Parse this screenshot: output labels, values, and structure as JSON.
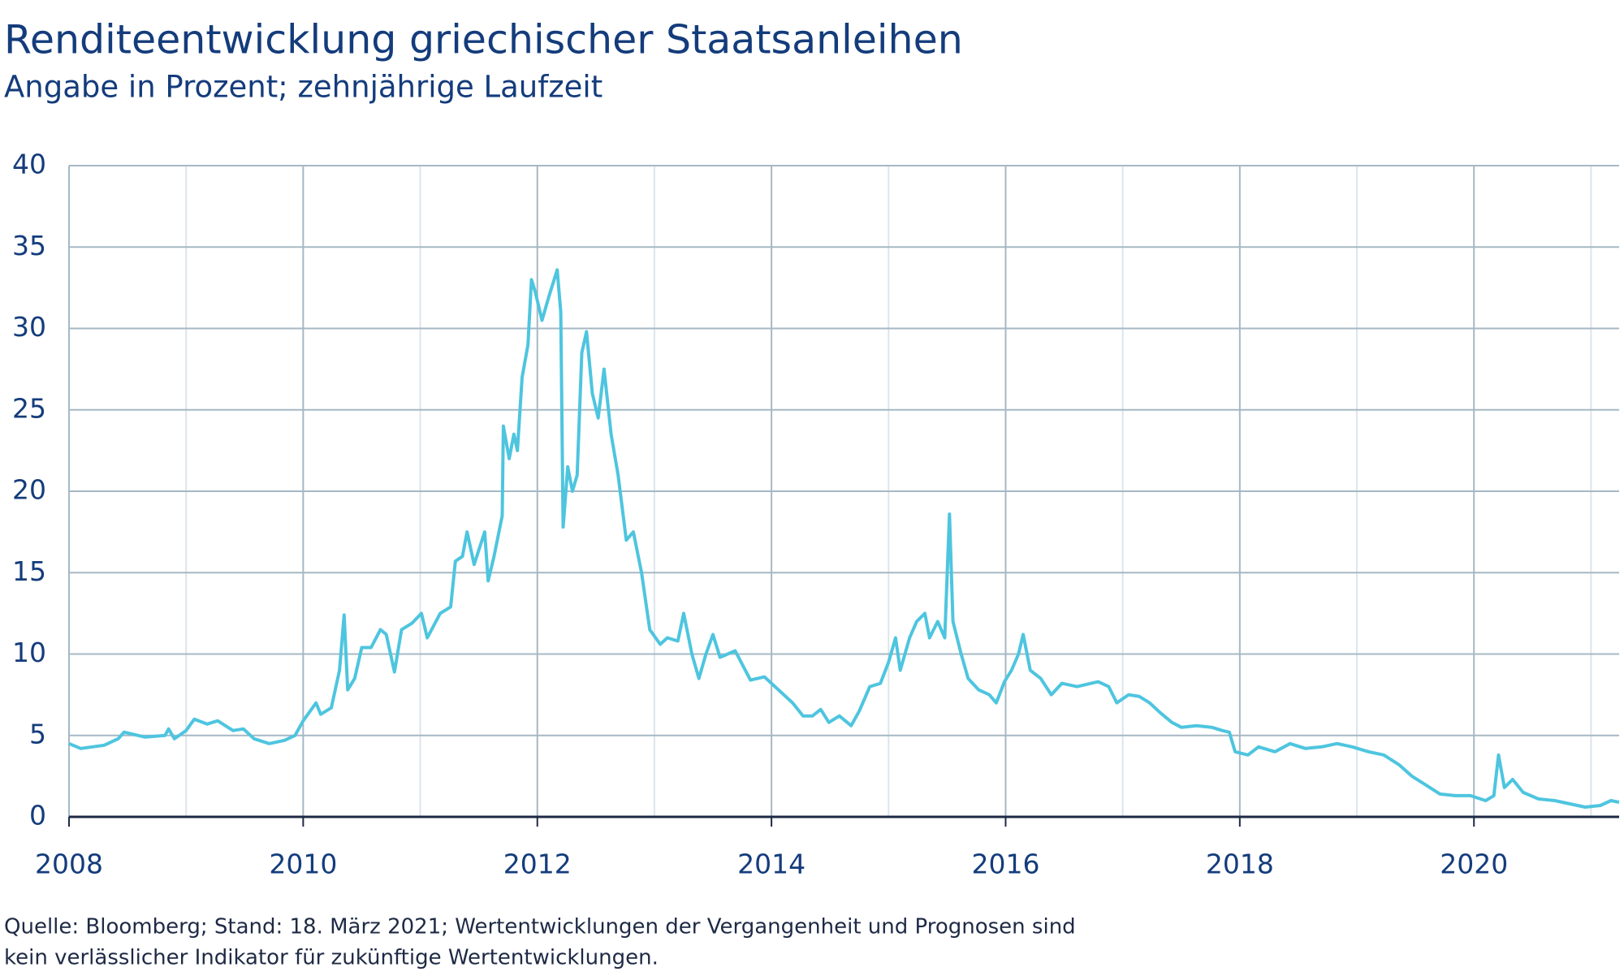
{
  "chart_data": {
    "type": "line",
    "title": "Renditeentwicklung griechischer Staatsanleihen",
    "subtitle": "Angabe in Prozent; zehnjährige Laufzeit",
    "source": [
      "Quelle: Bloomberg; Stand: 18. März 2021; Wertentwicklungen der Vergangenheit und Prognosen sind",
      "kein verlässlicher Indikator für zukünftige Wertentwicklungen."
    ],
    "xlim": [
      2008,
      2021.24
    ],
    "xticks": [
      2008,
      2010,
      2012,
      2014,
      2016,
      2018,
      2020
    ],
    "xminor": [
      2009,
      2011,
      2013,
      2015,
      2017,
      2019,
      2021
    ],
    "ylim": [
      0,
      40
    ],
    "yticks": [
      0,
      5,
      10,
      15,
      20,
      25,
      30,
      35,
      40
    ],
    "grid": true,
    "x": [
      2008.0,
      2008.1,
      2008.3,
      2008.42,
      2008.47,
      2008.65,
      2008.82,
      2008.85,
      2008.9,
      2009.0,
      2009.07,
      2009.18,
      2009.27,
      2009.4,
      2009.49,
      2009.58,
      2009.71,
      2009.84,
      2009.93,
      2010.0,
      2010.06,
      2010.11,
      2010.15,
      2010.24,
      2010.31,
      2010.35,
      2010.38,
      2010.44,
      2010.5,
      2010.58,
      2010.66,
      2010.71,
      2010.78,
      2010.84,
      2010.93,
      2011.01,
      2011.06,
      2011.17,
      2011.26,
      2011.3,
      2011.36,
      2011.4,
      2011.46,
      2011.55,
      2011.58,
      2011.63,
      2011.7,
      2011.71,
      2011.76,
      2011.8,
      2011.83,
      2011.87,
      2011.92,
      2011.95,
      2011.98,
      2012.04,
      2012.1,
      2012.17,
      2012.2,
      2012.22,
      2012.26,
      2012.3,
      2012.34,
      2012.38,
      2012.42,
      2012.47,
      2012.52,
      2012.57,
      2012.63,
      2012.69,
      2012.76,
      2012.82,
      2012.89,
      2012.96,
      2013.05,
      2013.11,
      2013.2,
      2013.25,
      2013.32,
      2013.38,
      2013.44,
      2013.5,
      2013.56,
      2013.69,
      2013.82,
      2013.94,
      2014.03,
      2014.09,
      2014.18,
      2014.27,
      2014.35,
      2014.42,
      2014.49,
      2014.58,
      2014.68,
      2014.75,
      2014.84,
      2014.93,
      2015.0,
      2015.06,
      2015.1,
      2015.18,
      2015.24,
      2015.31,
      2015.35,
      2015.42,
      2015.48,
      2015.52,
      2015.55,
      2015.62,
      2015.68,
      2015.77,
      2015.86,
      2015.92,
      2015.99,
      2016.05,
      2016.11,
      2016.15,
      2016.21,
      2016.3,
      2016.39,
      2016.48,
      2016.61,
      2016.79,
      2016.88,
      2016.95,
      2017.05,
      2017.14,
      2017.23,
      2017.32,
      2017.42,
      2017.5,
      2017.63,
      2017.76,
      2017.85,
      2017.91,
      2017.96,
      2018.07,
      2018.16,
      2018.3,
      2018.43,
      2018.56,
      2018.7,
      2018.83,
      2018.96,
      2019.1,
      2019.23,
      2019.36,
      2019.47,
      2019.58,
      2019.71,
      2019.84,
      2019.97,
      2020.1,
      2020.17,
      2020.21,
      2020.26,
      2020.33,
      2020.42,
      2020.55,
      2020.69,
      2020.82,
      2020.95,
      2021.08,
      2021.17,
      2021.24
    ],
    "series": [
      {
        "name": "Rendite",
        "color": "#4ec5df",
        "values": [
          4.5,
          4.2,
          4.4,
          4.8,
          5.2,
          4.9,
          5.0,
          5.4,
          4.8,
          5.3,
          6.0,
          5.7,
          5.9,
          5.3,
          5.4,
          4.8,
          4.5,
          4.7,
          5.0,
          5.9,
          6.5,
          7.0,
          6.3,
          6.7,
          9.0,
          12.4,
          7.8,
          8.5,
          10.4,
          10.4,
          11.5,
          11.2,
          8.9,
          11.5,
          11.9,
          12.5,
          11.0,
          12.5,
          12.9,
          15.7,
          16.0,
          17.5,
          15.5,
          17.5,
          14.5,
          16.0,
          18.5,
          24.0,
          22.0,
          23.5,
          22.5,
          27.0,
          29.0,
          33.0,
          32.3,
          30.5,
          32.0,
          33.6,
          31.0,
          17.8,
          21.5,
          20.0,
          21.0,
          28.5,
          29.8,
          26.0,
          24.5,
          27.5,
          23.5,
          21.0,
          17.0,
          17.5,
          15.0,
          11.5,
          10.6,
          11.0,
          10.8,
          12.5,
          10.0,
          8.5,
          10.0,
          11.2,
          9.8,
          10.2,
          8.4,
          8.6,
          8.0,
          7.6,
          7.0,
          6.2,
          6.2,
          6.6,
          5.8,
          6.2,
          5.6,
          6.5,
          8.0,
          8.2,
          9.5,
          11.0,
          9.0,
          11.0,
          12.0,
          12.5,
          11.0,
          12.0,
          11.0,
          18.6,
          12.0,
          10.0,
          8.5,
          7.8,
          7.5,
          7.0,
          8.3,
          9.0,
          10.0,
          11.2,
          9.0,
          8.5,
          7.5,
          8.2,
          8.0,
          8.3,
          8.0,
          7.0,
          7.5,
          7.4,
          7.0,
          6.4,
          5.8,
          5.5,
          5.6,
          5.5,
          5.3,
          5.2,
          4.0,
          3.8,
          4.3,
          4.0,
          4.5,
          4.2,
          4.3,
          4.5,
          4.3,
          4.0,
          3.8,
          3.2,
          2.5,
          2.0,
          1.4,
          1.3,
          1.3,
          1.0,
          1.3,
          3.8,
          1.8,
          2.3,
          1.5,
          1.1,
          1.0,
          0.8,
          0.6,
          0.7,
          1.0,
          0.9
        ]
      }
    ]
  }
}
